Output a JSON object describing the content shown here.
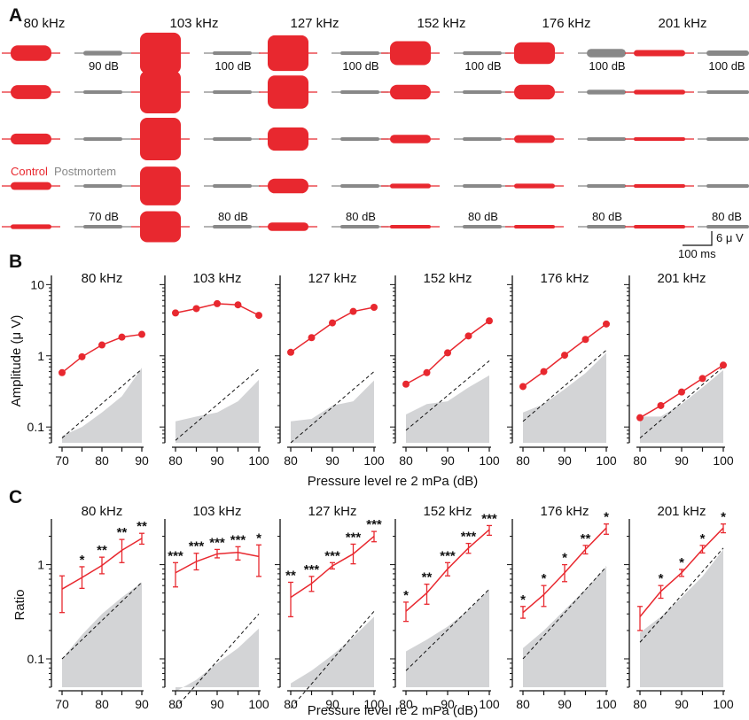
{
  "panel_letters": [
    "A",
    "B",
    "C"
  ],
  "colors": {
    "control": "#e8282f",
    "postmortem": "#888888",
    "noise_fill": "#d3d4d6",
    "axis": "#111111"
  },
  "panel_a": {
    "frequencies": [
      "80 kHz",
      "103 kHz",
      "127 kHz",
      "152 kHz",
      "176 kHz",
      "201 kHz"
    ],
    "top_level_labels": [
      "90 dB",
      "100 dB",
      "100 dB",
      "100 dB",
      "100 dB",
      "100 dB"
    ],
    "bottom_level_labels": [
      "70 dB",
      "80 dB",
      "80 dB",
      "80 dB",
      "80 dB",
      "80 dB"
    ],
    "legend_control": "Control",
    "legend_postmortem": "Postmortem",
    "scalebar_amplitude": "6 μ V",
    "scalebar_time": "100 ms",
    "control_amplitudes": [
      [
        2.0,
        1.8,
        1.4,
        1.0,
        0.6
      ],
      [
        5.3,
        5.5,
        5.5,
        5.0,
        4.0
      ],
      [
        4.6,
        4.3,
        3.0,
        1.9,
        1.1
      ],
      [
        3.1,
        1.9,
        1.1,
        0.6,
        0.4
      ],
      [
        2.8,
        1.9,
        1.0,
        0.6,
        0.4
      ],
      [
        0.8,
        0.6,
        0.4,
        0.3,
        0.2
      ]
    ],
    "postmortem_amplitudes": [
      [
        0.6,
        0.4,
        0.3,
        0.2,
        0.2
      ],
      [
        0.4,
        0.3,
        0.2,
        0.2,
        0.2
      ],
      [
        0.4,
        0.3,
        0.2,
        0.2,
        0.2
      ],
      [
        0.5,
        0.4,
        0.3,
        0.2,
        0.2
      ],
      [
        1.1,
        0.6,
        0.4,
        0.3,
        0.2
      ],
      [
        0.7,
        0.4,
        0.3,
        0.2,
        0.2
      ]
    ]
  },
  "panel_b": {
    "ylabel": "Amplitude (μ V)",
    "xlabel": "Pressure level re 2 mPa (dB)",
    "yticks": [
      "0.1",
      "1",
      "10"
    ]
  },
  "panel_c": {
    "ylabel": "Ratio",
    "xlabel": "Pressure level re 2 mPa (dB)",
    "yticks": [
      "0.1",
      "1"
    ]
  },
  "chart_data": [
    {
      "type": "line",
      "panel": "B",
      "yscale": "log",
      "ylim": [
        0.06,
        12
      ],
      "facets": [
        {
          "title": "80 kHz",
          "x": [
            70,
            75,
            80,
            85,
            90
          ],
          "control": [
            0.58,
            0.97,
            1.42,
            1.83,
            2.0
          ],
          "noise_floor": [
            0.075,
            0.1,
            0.16,
            0.27,
            0.68
          ],
          "dashed": [
            0.07,
            0.65
          ]
        },
        {
          "title": "103 kHz",
          "x": [
            80,
            85,
            90,
            95,
            100
          ],
          "control": [
            4.0,
            4.6,
            5.4,
            5.2,
            3.7
          ],
          "noise_floor": [
            0.12,
            0.14,
            0.16,
            0.23,
            0.46
          ],
          "dashed": [
            0.065,
            0.65
          ]
        },
        {
          "title": "127 kHz",
          "x": [
            80,
            85,
            90,
            95,
            100
          ],
          "control": [
            1.12,
            1.8,
            2.9,
            4.2,
            4.8
          ],
          "noise_floor": [
            0.12,
            0.13,
            0.2,
            0.23,
            0.45
          ],
          "dashed": [
            0.06,
            0.6
          ]
        },
        {
          "title": "152 kHz",
          "x": [
            80,
            85,
            90,
            95,
            100
          ],
          "control": [
            0.4,
            0.58,
            1.1,
            1.9,
            3.1
          ],
          "noise_floor": [
            0.15,
            0.21,
            0.23,
            0.36,
            0.53
          ],
          "dashed": [
            0.09,
            0.85
          ]
        },
        {
          "title": "176 kHz",
          "x": [
            80,
            85,
            90,
            95,
            100
          ],
          "control": [
            0.37,
            0.6,
            1.02,
            1.7,
            2.8
          ],
          "noise_floor": [
            0.16,
            0.21,
            0.34,
            0.57,
            1.1
          ],
          "dashed": [
            0.12,
            1.2
          ]
        },
        {
          "title": "201 kHz",
          "x": [
            80,
            85,
            90,
            95,
            100
          ],
          "control": [
            0.135,
            0.2,
            0.31,
            0.48,
            0.74
          ],
          "noise_floor": [
            0.14,
            0.14,
            0.21,
            0.36,
            0.63
          ],
          "dashed": [
            0.07,
            0.7
          ]
        }
      ]
    },
    {
      "type": "line",
      "panel": "C",
      "yscale": "log",
      "ylim": [
        0.05,
        2.8
      ],
      "facets": [
        {
          "title": "80 kHz",
          "x": [
            70,
            75,
            80,
            85,
            90
          ],
          "ratio": [
            0.55,
            0.73,
            0.98,
            1.42,
            1.9
          ],
          "err": [
            0.55,
            0.73,
            0.98,
            1.42,
            1.9
          ],
          "err_lo": [
            0.31,
            0.56,
            0.8,
            1.05,
            1.65
          ],
          "err_hi": [
            0.76,
            0.95,
            1.2,
            1.85,
            2.15
          ],
          "sig": [
            "",
            "*",
            "**",
            "**",
            "**"
          ],
          "noise_floor": [
            0.1,
            0.18,
            0.3,
            0.45,
            0.65
          ],
          "dashed": [
            0.1,
            0.65
          ]
        },
        {
          "title": "103 kHz",
          "x": [
            80,
            85,
            90,
            95,
            100
          ],
          "ratio": [
            0.82,
            1.08,
            1.3,
            1.35,
            1.22
          ],
          "err_lo": [
            0.58,
            0.88,
            1.18,
            1.12,
            0.75
          ],
          "err_hi": [
            1.05,
            1.32,
            1.45,
            1.55,
            1.62
          ],
          "sig": [
            "***",
            "***",
            "***",
            "***",
            "*"
          ],
          "noise_floor": [
            0.045,
            0.06,
            0.09,
            0.13,
            0.21
          ],
          "dashed": [
            0.03,
            0.3
          ]
        },
        {
          "title": "127 kHz",
          "x": [
            80,
            85,
            90,
            95,
            100
          ],
          "ratio": [
            0.45,
            0.63,
            0.97,
            1.3,
            2.0
          ],
          "err_lo": [
            0.28,
            0.52,
            0.9,
            1.02,
            1.75
          ],
          "err_hi": [
            0.65,
            0.75,
            1.05,
            1.65,
            2.25
          ],
          "sig": [
            "**",
            "***",
            "***",
            "***",
            "***"
          ],
          "noise_floor": [
            0.055,
            0.075,
            0.11,
            0.17,
            0.28
          ],
          "dashed": [
            0.03,
            0.32
          ]
        },
        {
          "title": "152 kHz",
          "x": [
            80,
            85,
            90,
            95,
            100
          ],
          "ratio": [
            0.32,
            0.5,
            0.9,
            1.5,
            2.35
          ],
          "err_lo": [
            0.25,
            0.38,
            0.76,
            1.32,
            2.05
          ],
          "err_hi": [
            0.4,
            0.62,
            1.05,
            1.68,
            2.6
          ],
          "sig": [
            "*",
            "**",
            "***",
            "***",
            "***"
          ],
          "noise_floor": [
            0.12,
            0.16,
            0.22,
            0.33,
            0.55
          ],
          "dashed": [
            0.075,
            0.55
          ]
        },
        {
          "title": "176 kHz",
          "x": [
            80,
            85,
            90,
            95,
            100
          ],
          "ratio": [
            0.31,
            0.48,
            0.82,
            1.45,
            2.45
          ],
          "err_lo": [
            0.27,
            0.36,
            0.66,
            1.3,
            2.1
          ],
          "err_hi": [
            0.36,
            0.6,
            1.0,
            1.6,
            2.7
          ],
          "sig": [
            "*",
            "*",
            "*",
            "**",
            "*"
          ],
          "noise_floor": [
            0.13,
            0.2,
            0.33,
            0.55,
            0.95
          ],
          "dashed": [
            0.1,
            0.95
          ]
        },
        {
          "title": "201 kHz",
          "x": [
            80,
            85,
            90,
            95,
            100
          ],
          "ratio": [
            0.28,
            0.52,
            0.82,
            1.45,
            2.45
          ],
          "err_lo": [
            0.2,
            0.44,
            0.75,
            1.33,
            2.18
          ],
          "err_hi": [
            0.36,
            0.6,
            0.89,
            1.6,
            2.7
          ],
          "sig": [
            "",
            "*",
            "*",
            "*",
            "*"
          ],
          "noise_floor": [
            0.19,
            0.28,
            0.45,
            0.75,
            1.45
          ],
          "dashed": [
            0.15,
            1.5
          ]
        }
      ]
    }
  ]
}
